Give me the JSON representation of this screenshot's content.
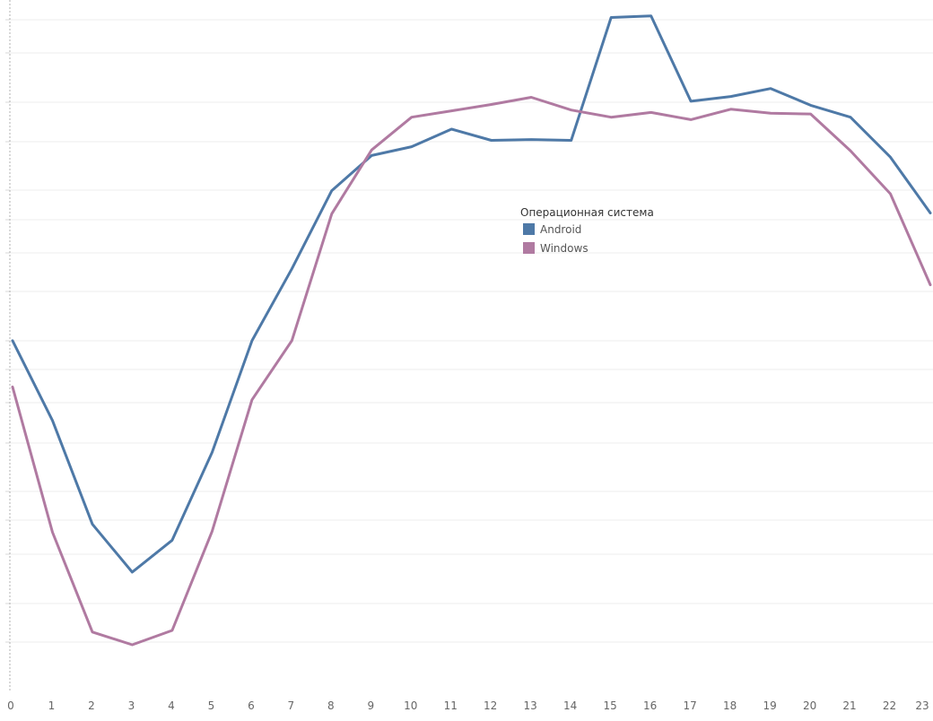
{
  "chart_data": {
    "type": "line",
    "title": "",
    "xlabel": "",
    "ylabel": "",
    "categories": [
      "0",
      "1",
      "2",
      "3",
      "4",
      "5",
      "6",
      "7",
      "8",
      "9",
      "10",
      "11",
      "12",
      "13",
      "14",
      "15",
      "16",
      "17",
      "18",
      "19",
      "20",
      "21",
      "22",
      "23"
    ],
    "series": [
      {
        "name": "Android",
        "color": "#4e79a7",
        "values": [
          390,
          290,
          160,
          100,
          140,
          250,
          390,
          480,
          578,
          622,
          633,
          655,
          641,
          642,
          641,
          795,
          797,
          690,
          696,
          706,
          685,
          670,
          620,
          550
        ]
      },
      {
        "name": "Windows",
        "color": "#b07aa1",
        "values": [
          332,
          150,
          25,
          9,
          27,
          151,
          316,
          390,
          549,
          629,
          670,
          678,
          686,
          695,
          679,
          670,
          676,
          667,
          680,
          675,
          674,
          628,
          574,
          460
        ]
      }
    ],
    "grid": true,
    "legend": {
      "title": "Операционная система",
      "placement": "center-right"
    }
  }
}
